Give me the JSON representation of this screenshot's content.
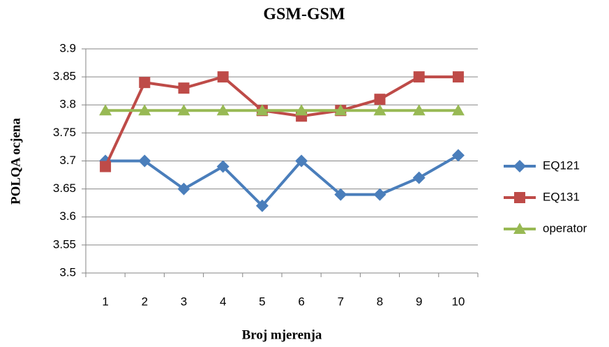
{
  "chart_data": {
    "type": "line",
    "title": "GSM-GSM",
    "x_label": "Broj mjerenja",
    "y_label": "POLQA ocjena",
    "categories": [
      "1",
      "2",
      "3",
      "4",
      "5",
      "6",
      "7",
      "8",
      "9",
      "10"
    ],
    "series": [
      {
        "name": "EQ121",
        "color": "#4a7ebb",
        "marker": "diamond",
        "values": [
          3.7,
          3.7,
          3.65,
          3.69,
          3.62,
          3.7,
          3.64,
          3.64,
          3.67,
          3.71
        ]
      },
      {
        "name": "EQ131",
        "color": "#be4b48",
        "marker": "square",
        "values": [
          3.69,
          3.84,
          3.83,
          3.85,
          3.79,
          3.78,
          3.79,
          3.81,
          3.85,
          3.85
        ]
      },
      {
        "name": "operator",
        "color": "#98b954",
        "marker": "triangle",
        "values": [
          3.79,
          3.79,
          3.79,
          3.79,
          3.79,
          3.79,
          3.79,
          3.79,
          3.79,
          3.79
        ]
      }
    ],
    "ylim": [
      3.5,
      3.9
    ],
    "yticks": [
      3.5,
      3.55,
      3.6,
      3.65,
      3.7,
      3.75,
      3.8,
      3.85,
      3.9
    ],
    "grid": true,
    "legend": "right"
  }
}
